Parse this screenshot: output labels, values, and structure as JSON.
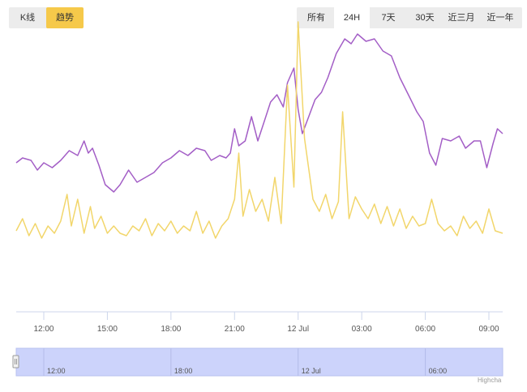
{
  "view_toggle": [
    {
      "label": "K线",
      "active": false
    },
    {
      "label": "趋势",
      "active": true
    }
  ],
  "range_buttons": [
    {
      "label": "所有",
      "active": false
    },
    {
      "label": "24H",
      "active": true
    },
    {
      "label": "7天",
      "active": false
    },
    {
      "label": "30天",
      "active": false
    },
    {
      "label": "近三月",
      "active": false
    },
    {
      "label": "近一年",
      "active": false
    }
  ],
  "credits": "Highcha",
  "colors": {
    "purple": "#a35ec6",
    "yellow": "#f2d66b",
    "navigator": "#ccd3fb",
    "active_toggle": "#f6c94a"
  },
  "chart_data": {
    "type": "line",
    "x_unit": "hours",
    "x_start": 10.7,
    "x_end": 33.65,
    "x_ticks": [
      {
        "x": 12,
        "label": "12:00"
      },
      {
        "x": 15,
        "label": "15:00"
      },
      {
        "x": 18,
        "label": "18:00"
      },
      {
        "x": 21,
        "label": "21:00"
      },
      {
        "x": 24,
        "label": "12 Jul"
      },
      {
        "x": 27,
        "label": "03:00"
      },
      {
        "x": 30,
        "label": "06:00"
      },
      {
        "x": 33,
        "label": "09:00"
      }
    ],
    "navigator_ticks": [
      {
        "x": 12,
        "label": "12:00"
      },
      {
        "x": 18,
        "label": "18:00"
      },
      {
        "x": 24,
        "label": "12 Jul"
      },
      {
        "x": 30,
        "label": "06:00"
      }
    ],
    "ylim": [
      0,
      100
    ],
    "series": [
      {
        "color": "#a35ec6",
        "points": [
          [
            10.7,
            53
          ],
          [
            11.0,
            55
          ],
          [
            11.4,
            54
          ],
          [
            11.7,
            50
          ],
          [
            12.0,
            53
          ],
          [
            12.4,
            51
          ],
          [
            12.8,
            54
          ],
          [
            13.2,
            58
          ],
          [
            13.6,
            56
          ],
          [
            13.9,
            62
          ],
          [
            14.1,
            57
          ],
          [
            14.3,
            59
          ],
          [
            14.6,
            52
          ],
          [
            14.9,
            44
          ],
          [
            15.3,
            41
          ],
          [
            15.6,
            44
          ],
          [
            16.0,
            50
          ],
          [
            16.4,
            45
          ],
          [
            16.8,
            47
          ],
          [
            17.2,
            49
          ],
          [
            17.6,
            53
          ],
          [
            18.0,
            55
          ],
          [
            18.4,
            58
          ],
          [
            18.8,
            56
          ],
          [
            19.2,
            59
          ],
          [
            19.6,
            58
          ],
          [
            19.9,
            54
          ],
          [
            20.3,
            56
          ],
          [
            20.6,
            55
          ],
          [
            20.8,
            57
          ],
          [
            21.0,
            67
          ],
          [
            21.2,
            60
          ],
          [
            21.5,
            62
          ],
          [
            21.8,
            72
          ],
          [
            22.1,
            62
          ],
          [
            22.4,
            70
          ],
          [
            22.7,
            78
          ],
          [
            23.0,
            81
          ],
          [
            23.3,
            76
          ],
          [
            23.5,
            86
          ],
          [
            23.8,
            92
          ],
          [
            24.0,
            75
          ],
          [
            24.2,
            65
          ],
          [
            24.5,
            72
          ],
          [
            24.8,
            79
          ],
          [
            25.1,
            82
          ],
          [
            25.4,
            88
          ],
          [
            25.8,
            98
          ],
          [
            26.2,
            104
          ],
          [
            26.5,
            102
          ],
          [
            26.8,
            106
          ],
          [
            27.2,
            103
          ],
          [
            27.6,
            104
          ],
          [
            28.0,
            99
          ],
          [
            28.4,
            97
          ],
          [
            28.8,
            88
          ],
          [
            29.2,
            81
          ],
          [
            29.6,
            74
          ],
          [
            29.9,
            70
          ],
          [
            30.2,
            57
          ],
          [
            30.5,
            52
          ],
          [
            30.8,
            63
          ],
          [
            31.2,
            62
          ],
          [
            31.6,
            64
          ],
          [
            31.9,
            59
          ],
          [
            32.3,
            62
          ],
          [
            32.6,
            62
          ],
          [
            32.9,
            51
          ],
          [
            33.2,
            61
          ],
          [
            33.4,
            67
          ],
          [
            33.65,
            65
          ]
        ]
      },
      {
        "color": "#f2d66b",
        "points": [
          [
            10.7,
            25
          ],
          [
            11.0,
            30
          ],
          [
            11.3,
            23
          ],
          [
            11.6,
            28
          ],
          [
            11.9,
            22
          ],
          [
            12.2,
            27
          ],
          [
            12.5,
            24
          ],
          [
            12.8,
            29
          ],
          [
            13.1,
            40
          ],
          [
            13.3,
            27
          ],
          [
            13.6,
            38
          ],
          [
            13.9,
            24
          ],
          [
            14.2,
            35
          ],
          [
            14.4,
            26
          ],
          [
            14.7,
            31
          ],
          [
            15.0,
            24
          ],
          [
            15.3,
            27
          ],
          [
            15.6,
            24
          ],
          [
            15.9,
            23
          ],
          [
            16.2,
            27
          ],
          [
            16.5,
            25
          ],
          [
            16.8,
            30
          ],
          [
            17.1,
            23
          ],
          [
            17.4,
            28
          ],
          [
            17.7,
            25
          ],
          [
            18.0,
            29
          ],
          [
            18.3,
            24
          ],
          [
            18.6,
            27
          ],
          [
            18.9,
            25
          ],
          [
            19.2,
            33
          ],
          [
            19.5,
            24
          ],
          [
            19.8,
            29
          ],
          [
            20.1,
            22
          ],
          [
            20.4,
            27
          ],
          [
            20.7,
            30
          ],
          [
            21.0,
            38
          ],
          [
            21.2,
            57
          ],
          [
            21.4,
            31
          ],
          [
            21.7,
            42
          ],
          [
            22.0,
            33
          ],
          [
            22.3,
            38
          ],
          [
            22.6,
            29
          ],
          [
            22.9,
            47
          ],
          [
            23.2,
            28
          ],
          [
            23.5,
            85
          ],
          [
            23.8,
            43
          ],
          [
            24.0,
            111
          ],
          [
            24.3,
            63
          ],
          [
            24.7,
            38
          ],
          [
            25.0,
            33
          ],
          [
            25.3,
            40
          ],
          [
            25.6,
            30
          ],
          [
            25.9,
            37
          ],
          [
            26.1,
            74
          ],
          [
            26.4,
            30
          ],
          [
            26.7,
            39
          ],
          [
            27.0,
            34
          ],
          [
            27.3,
            30
          ],
          [
            27.6,
            36
          ],
          [
            27.9,
            28
          ],
          [
            28.2,
            35
          ],
          [
            28.5,
            27
          ],
          [
            28.8,
            34
          ],
          [
            29.1,
            26
          ],
          [
            29.4,
            31
          ],
          [
            29.7,
            27
          ],
          [
            30.0,
            28
          ],
          [
            30.3,
            38
          ],
          [
            30.6,
            28
          ],
          [
            30.9,
            25
          ],
          [
            31.2,
            27
          ],
          [
            31.5,
            23
          ],
          [
            31.8,
            31
          ],
          [
            32.1,
            26
          ],
          [
            32.4,
            29
          ],
          [
            32.7,
            24
          ],
          [
            33.0,
            34
          ],
          [
            33.3,
            25
          ],
          [
            33.65,
            24
          ]
        ]
      }
    ]
  }
}
